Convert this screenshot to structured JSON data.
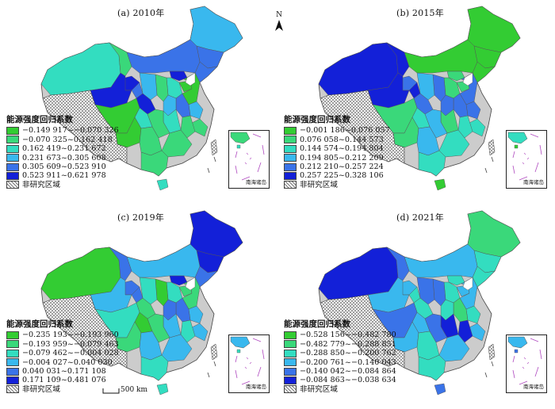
{
  "legend_title": "能源强度回归系数",
  "not_studied_label": "非研究区域",
  "inset_label": "南海诸岛",
  "north_label": "N",
  "scale_label": "500 km",
  "palette": [
    "#33cc33",
    "#3ad87a",
    "#33ddc0",
    "#39b8ee",
    "#3a73e8",
    "#1320d8"
  ],
  "panels": [
    {
      "title": "(a) 2010年",
      "classes": [
        "−0.149 917~−0.070 326",
        "−0.070 325~0.162 418",
        "0.162 419~0.231 672",
        "0.231 673~0.305 608",
        "0.305 609~0.523 910",
        "0.523 911~0.621 978"
      ],
      "regions": [
        2,
        3,
        4,
        4,
        4,
        1,
        5,
        0,
        0,
        2,
        1,
        3,
        4,
        5,
        5,
        5,
        3,
        4,
        3,
        1,
        1,
        2,
        1,
        2,
        0,
        0,
        1,
        1,
        1,
        2
      ]
    },
    {
      "title": "(b) 2015年",
      "classes": [
        "−0.001 186~0.076 057",
        "0.076 058~0.144 573",
        "0.144 574~0.194 804",
        "0.194 805~0.212 209",
        "0.212 210~0.257 224",
        "0.257 225~0.328 106"
      ],
      "regions": [
        5,
        0,
        0,
        0,
        0,
        5,
        1,
        1,
        4,
        1,
        4,
        3,
        5,
        4,
        5,
        4,
        4,
        4,
        4,
        2,
        2,
        1,
        3,
        2,
        1,
        1,
        3,
        2,
        2,
        0
      ]
    },
    {
      "title": "(c) 2019年",
      "classes": [
        "−0.235 193~−0.193 960",
        "−0.193 959~−0.079 463",
        "−0.079 462~−0.004 028",
        "−0.004 027~0.040 030",
        "0.040 031~0.171 108",
        "0.171 109~0.481 076"
      ],
      "regions": [
        0,
        5,
        5,
        4,
        3,
        4,
        5,
        1,
        1,
        2,
        0,
        2,
        4,
        4,
        3,
        1,
        3,
        4,
        4,
        3,
        2,
        3,
        1,
        0,
        2,
        1,
        3,
        3,
        2,
        2
      ]
    },
    {
      "title": "(d) 2021年",
      "classes": [
        "−0.528 156~−0.482 780",
        "−0.482 779~−0.288 851",
        "−0.288 850~−0.200 762",
        "−0.200 761~−0.140 043",
        "−0.140 042~−0.084 864",
        "−0.084 863~−0.038 634"
      ],
      "regions": [
        5,
        1,
        2,
        2,
        3,
        4,
        2,
        3,
        3,
        2,
        4,
        4,
        2,
        3,
        3,
        2,
        2,
        1,
        2,
        3,
        5,
        5,
        4,
        3,
        4,
        3,
        2,
        3,
        2,
        4
      ]
    }
  ]
}
